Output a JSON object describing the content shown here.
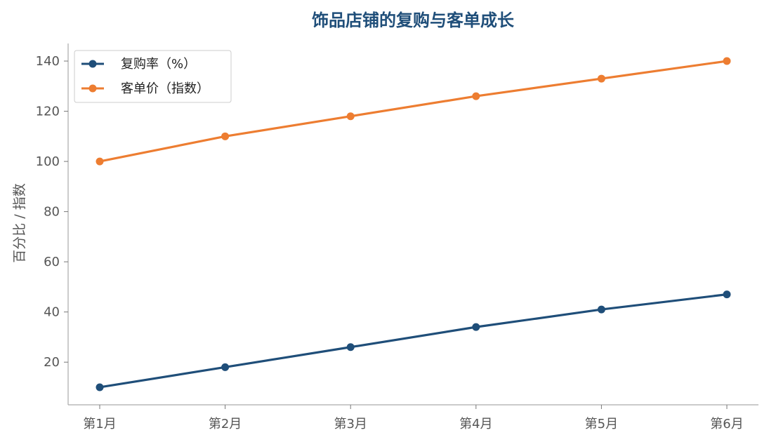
{
  "chart_data": {
    "type": "line",
    "title": "饰品店铺的复购与客单成长",
    "xlabel": "",
    "ylabel": "百分比 / 指数",
    "categories": [
      "第1月",
      "第2月",
      "第3月",
      "第4月",
      "第5月",
      "第6月"
    ],
    "ylim": [
      3,
      147
    ],
    "yticks": [
      20,
      40,
      60,
      80,
      100,
      120,
      140
    ],
    "grid": false,
    "legend_position": "top-left",
    "series": [
      {
        "name": "复购率（%）",
        "values": [
          10,
          18,
          26,
          34,
          41,
          47
        ],
        "color": "#1f4e79"
      },
      {
        "name": "客单价（指数）",
        "values": [
          100,
          110,
          118,
          126,
          133,
          140
        ],
        "color": "#ed7d31"
      }
    ]
  }
}
